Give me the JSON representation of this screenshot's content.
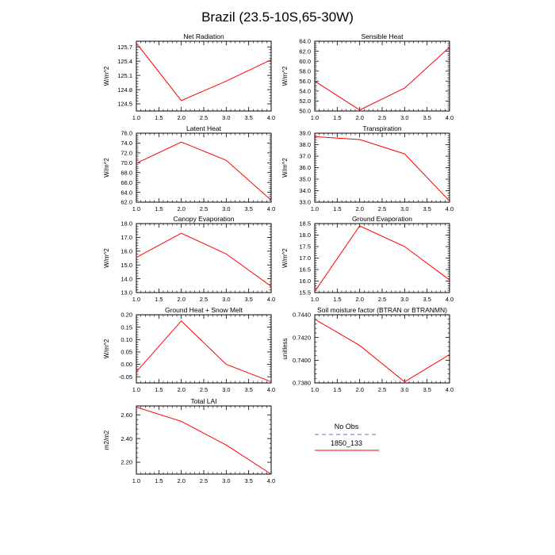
{
  "title": "Brazil (23.5-10S,65-30W)",
  "legend": {
    "entries": [
      {
        "label": "No Obs",
        "color": "#9999dd",
        "style": "dashed"
      },
      {
        "label": "1850_133",
        "color": "#ff0000",
        "style": "solid"
      }
    ]
  },
  "chart_data": [
    {
      "type": "line",
      "title": "Net Radiation",
      "ylabel": "W/m^2",
      "x": [
        1.0,
        2.0,
        3.0,
        4.0
      ],
      "values": [
        125.78,
        124.57,
        124.98,
        125.43
      ],
      "xlim": [
        1.0,
        4.0
      ],
      "ylim": [
        124.35,
        125.82
      ],
      "xticks": [
        "1.0",
        "1.5",
        "2.0",
        "2.5",
        "3.0",
        "3.5",
        "4.0"
      ],
      "yticks": [
        124.5,
        124.8,
        125.1,
        125.4,
        125.7
      ],
      "ydecimals": 1,
      "color": "#ff0000"
    },
    {
      "type": "line",
      "title": "Sensible Heat",
      "ylabel": "W/m^2",
      "x": [
        1.0,
        2.0,
        3.0,
        4.0
      ],
      "values": [
        56.0,
        50.2,
        54.6,
        62.8
      ],
      "xlim": [
        1.0,
        4.0
      ],
      "ylim": [
        50.0,
        64.0
      ],
      "xticks": [
        "1.0",
        "1.5",
        "2.0",
        "2.5",
        "3.0",
        "3.5",
        "4.0"
      ],
      "yticks": [
        50.0,
        52.0,
        54.0,
        56.0,
        58.0,
        60.0,
        62.0,
        64.0
      ],
      "ydecimals": 1,
      "color": "#ff0000"
    },
    {
      "type": "line",
      "title": "Latent Heat",
      "ylabel": "W/m^2",
      "x": [
        1.0,
        2.0,
        3.0,
        4.0
      ],
      "values": [
        69.9,
        74.2,
        70.5,
        62.4
      ],
      "xlim": [
        1.0,
        4.0
      ],
      "ylim": [
        62.0,
        76.0
      ],
      "xticks": [
        "1.0",
        "1.5",
        "2.0",
        "2.5",
        "3.0",
        "3.5",
        "4.0"
      ],
      "yticks": [
        62.0,
        64.0,
        66.0,
        68.0,
        70.0,
        72.0,
        74.0,
        76.0
      ],
      "ydecimals": 1,
      "color": "#ff0000"
    },
    {
      "type": "line",
      "title": "Transpiration",
      "ylabel": "W/m^2",
      "x": [
        1.0,
        2.0,
        3.0,
        4.0
      ],
      "values": [
        38.7,
        38.45,
        37.2,
        33.1
      ],
      "xlim": [
        1.0,
        4.0
      ],
      "ylim": [
        33.0,
        39.0
      ],
      "xticks": [
        "1.0",
        "1.5",
        "2.0",
        "2.5",
        "3.0",
        "3.5",
        "4.0"
      ],
      "yticks": [
        33.0,
        34.0,
        35.0,
        36.0,
        37.0,
        38.0,
        39.0
      ],
      "ydecimals": 1,
      "color": "#ff0000"
    },
    {
      "type": "line",
      "title": "Canopy Evaporation",
      "ylabel": "W/m^2",
      "x": [
        1.0,
        2.0,
        3.0,
        4.0
      ],
      "values": [
        15.55,
        17.3,
        15.8,
        13.45
      ],
      "xlim": [
        1.0,
        4.0
      ],
      "ylim": [
        13.0,
        18.0
      ],
      "xticks": [
        "1.0",
        "1.5",
        "2.0",
        "2.5",
        "3.0",
        "3.5",
        "4.0"
      ],
      "yticks": [
        13.0,
        14.0,
        15.0,
        16.0,
        17.0,
        18.0
      ],
      "ydecimals": 1,
      "color": "#ff0000"
    },
    {
      "type": "line",
      "title": "Ground Evaporation",
      "ylabel": "W/m^2",
      "x": [
        1.0,
        2.0,
        3.0,
        4.0
      ],
      "values": [
        15.55,
        18.4,
        17.5,
        16.05
      ],
      "xlim": [
        1.0,
        4.0
      ],
      "ylim": [
        15.5,
        18.5
      ],
      "xticks": [
        "1.0",
        "1.5",
        "2.0",
        "2.5",
        "3.0",
        "3.5",
        "4.0"
      ],
      "yticks": [
        15.5,
        16.0,
        16.5,
        17.0,
        17.5,
        18.0,
        18.5
      ],
      "ydecimals": 1,
      "color": "#ff0000"
    },
    {
      "type": "line",
      "title": "Ground Heat + Snow Melt",
      "ylabel": "W/m^2",
      "x": [
        1.0,
        2.0,
        3.0,
        4.0
      ],
      "values": [
        -0.03,
        0.175,
        0.0,
        -0.07
      ],
      "xlim": [
        1.0,
        4.0
      ],
      "ylim": [
        -0.075,
        0.2
      ],
      "xticks": [
        "1.0",
        "1.5",
        "2.0",
        "2.5",
        "3.0",
        "3.5",
        "4.0"
      ],
      "yticks": [
        -0.05,
        0.0,
        0.05,
        0.1,
        0.15,
        0.2
      ],
      "ydecimals": 2,
      "color": "#ff0000"
    },
    {
      "type": "line",
      "title": "Soil moisture factor (BTRAN or BTRANMN)",
      "ylabel": "unitless",
      "x": [
        1.0,
        2.0,
        3.0,
        4.0
      ],
      "values": [
        0.7436,
        0.7413,
        0.7381,
        0.7405
      ],
      "xlim": [
        1.0,
        4.0
      ],
      "ylim": [
        0.738,
        0.744
      ],
      "xticks": [
        "1.0",
        "1.5",
        "2.0",
        "2.5",
        "3.0",
        "3.5",
        "4.0"
      ],
      "yticks": [
        0.738,
        0.74,
        0.742,
        0.744
      ],
      "ydecimals": 4,
      "color": "#ff0000"
    },
    {
      "type": "line",
      "title": "Total LAI",
      "ylabel": "m2/m2",
      "x": [
        1.0,
        2.0,
        3.0,
        4.0
      ],
      "values": [
        2.665,
        2.545,
        2.345,
        2.1
      ],
      "xlim": [
        1.0,
        4.0
      ],
      "ylim": [
        2.1,
        2.675
      ],
      "xticks": [
        "1.0",
        "1.5",
        "2.0",
        "2.5",
        "3.0",
        "3.5",
        "4.0"
      ],
      "yticks": [
        2.2,
        2.4,
        2.6
      ],
      "ydecimals": 2,
      "color": "#ff0000"
    }
  ]
}
